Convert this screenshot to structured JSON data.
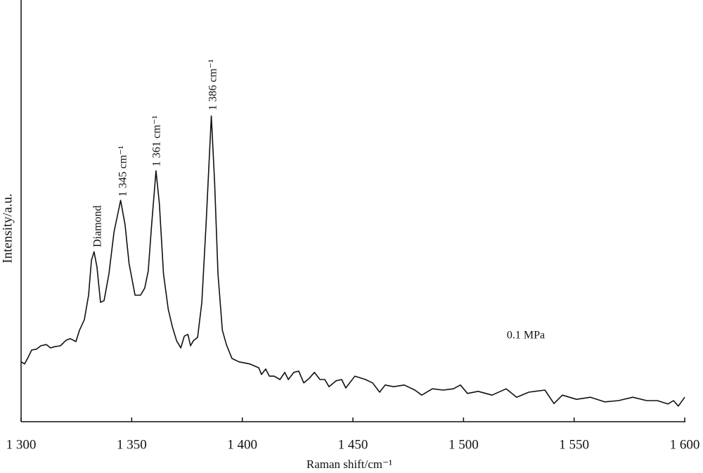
{
  "chart_data": {
    "type": "line",
    "x_label": "Raman shift/cm⁻¹",
    "y_label": "Intensity/a.u.",
    "annotations": [
      "Diamond",
      "1 345 cm⁻¹",
      "1 361 cm⁻¹",
      "1 386 cm⁻¹",
      "0.1 MPa"
    ],
    "xlim": [
      1300,
      1600
    ],
    "ylim": [
      0,
      100
    ],
    "xticks": [
      {
        "value": 1300,
        "label": "1 300"
      },
      {
        "value": 1350,
        "label": "1 350"
      },
      {
        "value": 1400,
        "label": "1 400"
      },
      {
        "value": 1450,
        "label": "1 450"
      },
      {
        "value": 1500,
        "label": "1 500"
      },
      {
        "value": 1550,
        "label": "1 550"
      },
      {
        "value": 1600,
        "label": "1 600"
      }
    ],
    "color": "#111111",
    "x": [
      1300,
      1301.6,
      1303.2,
      1304.8,
      1307.0,
      1308.9,
      1311.4,
      1313.3,
      1315.3,
      1317.8,
      1320.3,
      1322.2,
      1324.8,
      1326.4,
      1328.6,
      1330.5,
      1331.8,
      1333,
      1334.3,
      1335.9,
      1337.5,
      1339.7,
      1342.0,
      1345,
      1347,
      1348.8,
      1351.5,
      1354.0,
      1355.9,
      1357.5,
      1359,
      1361,
      1362.5,
      1364.4,
      1366.5,
      1368.4,
      1370.3,
      1372.2,
      1373.8,
      1375.4,
      1376.6,
      1377.9,
      1379.8,
      1381.7,
      1383.6,
      1386,
      1387.5,
      1389,
      1391,
      1392.8,
      1395.3,
      1398.5,
      1403.3,
      1407.4,
      1408.7,
      1410.6,
      1412.2,
      1414.4,
      1417,
      1419.2,
      1420.8,
      1423.3,
      1425.5,
      1427.8,
      1430.3,
      1432.6,
      1435.1,
      1437.3,
      1439.2,
      1442.4,
      1444.9,
      1446.8,
      1450.9,
      1455.7,
      1458.9,
      1462.1,
      1464.6,
      1468.4,
      1473.2,
      1478,
      1481.1,
      1485.9,
      1490.7,
      1495.4,
      1498.6,
      1501.8,
      1506.6,
      1512.9,
      1519.3,
      1524,
      1529.5,
      1536.8,
      1540.9,
      1544.7,
      1551.1,
      1557.4,
      1563.8,
      1570.1,
      1576.5,
      1582.8,
      1587.6,
      1592.4,
      1594.9,
      1597.1,
      1600
    ],
    "values": [
      14.2,
      13.7,
      15.3,
      17,
      17.2,
      18,
      18.3,
      17.5,
      17.8,
      18,
      19.3,
      19.7,
      19,
      21.7,
      24.2,
      30,
      38.3,
      40.3,
      36.7,
      28.3,
      28.7,
      35,
      45,
      52.5,
      46.7,
      37.5,
      30,
      30,
      31.7,
      35.8,
      46.7,
      59.5,
      51.7,
      35,
      26.7,
      22.5,
      19.2,
      17.5,
      20.3,
      20.7,
      18,
      19.2,
      20,
      28.3,
      46.7,
      72.5,
      56.7,
      35,
      21.7,
      18.3,
      15,
      14.2,
      13.7,
      12.8,
      11.2,
      12.5,
      10.8,
      10.8,
      10,
      11.7,
      10,
      11.7,
      12,
      9.2,
      10.3,
      11.7,
      10,
      10,
      8.3,
      9.7,
      10,
      8,
      10.8,
      10,
      9.2,
      7,
      8.7,
      8.3,
      8.7,
      7.5,
      6.3,
      7.8,
      7.5,
      7.8,
      8.7,
      6.7,
      7.2,
      6.3,
      7.8,
      5.8,
      7,
      7.5,
      4.3,
      6.3,
      5.3,
      5.8,
      4.7,
      5,
      5.8,
      5,
      5,
      4.2,
      5,
      3.7,
      5.8
    ]
  }
}
